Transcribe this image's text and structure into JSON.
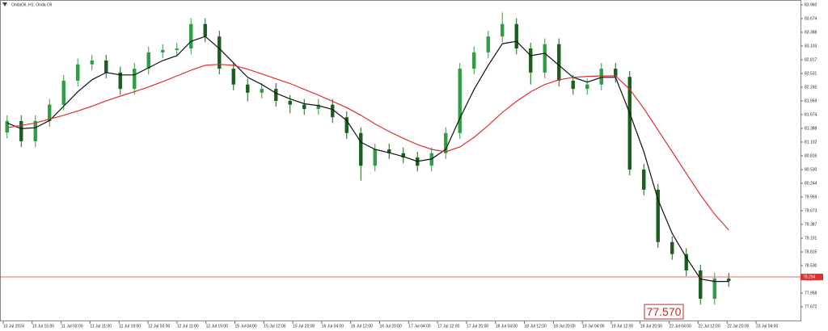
{
  "chart_data": {
    "type": "candlestick",
    "title": "OndaOil, H1: Onda Oil",
    "up_color": "#2e9e44",
    "down_color": "#1b5e20",
    "series": {
      "open": [
        81.3,
        81.54,
        81.12,
        81.54,
        81.88,
        82.38,
        82.72,
        82.8,
        82.55,
        82.21,
        82.63,
        82.97,
        83.02,
        83.05,
        83.56,
        83.3,
        82.63,
        82.3,
        82.13,
        82.21,
        81.96,
        81.88,
        81.79,
        81.88,
        81.62,
        81.29,
        80.61,
        80.95,
        80.87,
        80.78,
        80.61,
        80.87,
        81.29,
        82.63,
        82.97,
        83.3,
        83.56,
        83.05,
        82.55,
        83.14,
        82.38,
        82.21,
        82.3,
        82.63,
        82.46,
        80.53,
        80.11,
        79.02,
        78.77,
        78.43,
        77.84,
        78.26
      ],
      "high": [
        81.66,
        81.66,
        81.66,
        82.0,
        82.5,
        82.84,
        82.92,
        82.92,
        82.67,
        82.75,
        83.09,
        83.14,
        83.17,
        83.68,
        83.68,
        83.42,
        82.75,
        82.42,
        82.33,
        82.33,
        82.08,
        82.0,
        82.0,
        82.0,
        81.74,
        81.41,
        81.07,
        81.07,
        80.99,
        80.9,
        80.99,
        81.41,
        82.75,
        83.09,
        83.42,
        83.8,
        83.68,
        83.17,
        83.26,
        83.26,
        82.5,
        82.42,
        82.75,
        82.75,
        82.58,
        80.65,
        80.23,
        79.14,
        78.89,
        78.55,
        78.38,
        78.38
      ],
      "low": [
        81.18,
        81.0,
        81.0,
        81.42,
        81.76,
        82.26,
        82.6,
        82.43,
        82.09,
        82.09,
        82.51,
        82.85,
        82.9,
        82.93,
        83.18,
        82.51,
        82.18,
        81.95,
        82.01,
        81.84,
        81.7,
        81.67,
        81.67,
        81.5,
        81.17,
        80.3,
        80.49,
        80.75,
        80.66,
        80.49,
        80.49,
        80.75,
        81.17,
        82.51,
        82.85,
        83.18,
        82.93,
        82.3,
        82.43,
        82.26,
        82.09,
        82.09,
        82.18,
        82.34,
        80.41,
        79.99,
        78.9,
        78.65,
        78.31,
        77.72,
        77.72,
        78.09
      ],
      "close": [
        81.54,
        81.12,
        81.54,
        81.88,
        82.38,
        82.72,
        82.8,
        82.55,
        82.21,
        82.63,
        82.97,
        83.02,
        83.05,
        83.56,
        83.3,
        82.63,
        82.3,
        82.13,
        82.21,
        81.96,
        81.88,
        81.79,
        81.88,
        81.62,
        81.29,
        80.61,
        80.95,
        80.87,
        80.78,
        80.61,
        80.87,
        81.29,
        82.63,
        82.97,
        83.3,
        83.56,
        83.05,
        82.55,
        83.14,
        82.38,
        82.21,
        82.3,
        82.63,
        82.46,
        80.53,
        80.11,
        79.02,
        78.77,
        78.43,
        77.84,
        78.26,
        78.21
      ]
    },
    "overlays": [
      {
        "color": "#111111",
        "values": [
          81.5,
          81.38,
          81.4,
          81.55,
          81.85,
          82.15,
          82.4,
          82.55,
          82.5,
          82.5,
          82.65,
          82.8,
          82.9,
          83.2,
          83.3,
          83.05,
          82.75,
          82.45,
          82.3,
          82.12,
          82.0,
          81.9,
          81.86,
          81.78,
          81.55,
          81.1,
          80.95,
          80.88,
          80.8,
          80.7,
          80.75,
          80.95,
          81.6,
          82.2,
          82.7,
          83.15,
          83.2,
          82.9,
          82.95,
          82.7,
          82.45,
          82.35,
          82.45,
          82.45,
          81.7,
          80.9,
          79.9,
          79.2,
          78.7,
          78.25,
          78.2,
          78.2
        ]
      },
      {
        "color": "#e03030",
        "values": [
          81.4,
          81.45,
          81.5,
          81.58,
          81.66,
          81.75,
          81.85,
          81.96,
          82.06,
          82.15,
          82.25,
          82.36,
          82.48,
          82.6,
          82.7,
          82.72,
          82.7,
          82.62,
          82.52,
          82.42,
          82.32,
          82.2,
          82.08,
          81.95,
          81.82,
          81.66,
          81.48,
          81.32,
          81.18,
          81.05,
          80.95,
          80.9,
          81.0,
          81.2,
          81.45,
          81.72,
          81.95,
          82.15,
          82.3,
          82.4,
          82.45,
          82.47,
          82.48,
          82.48,
          82.2,
          81.8,
          81.35,
          80.9,
          80.45,
          80.0,
          79.6,
          79.27
        ]
      }
    ],
    "ylim": [
      77.37,
      84.06
    ],
    "yticks": [
      {
        "value": 83.96,
        "label": "83.960"
      },
      {
        "value": 83.674,
        "label": "83.674"
      },
      {
        "value": 83.388,
        "label": "83.388"
      },
      {
        "value": 83.103,
        "label": "83.103"
      },
      {
        "value": 82.817,
        "label": "82.817"
      },
      {
        "value": 82.531,
        "label": "82.531"
      },
      {
        "value": 82.245,
        "label": "82.245"
      },
      {
        "value": 81.959,
        "label": "81.959"
      },
      {
        "value": 81.674,
        "label": "81.674"
      },
      {
        "value": 81.388,
        "label": "81.388"
      },
      {
        "value": 81.102,
        "label": "81.102"
      },
      {
        "value": 80.816,
        "label": "80.816"
      },
      {
        "value": 80.53,
        "label": "80.530"
      },
      {
        "value": 80.244,
        "label": "80.244"
      },
      {
        "value": 79.959,
        "label": "79.959"
      },
      {
        "value": 79.673,
        "label": "79.673"
      },
      {
        "value": 79.387,
        "label": "79.387"
      },
      {
        "value": 79.101,
        "label": "79.101"
      },
      {
        "value": 78.815,
        "label": "78.815"
      },
      {
        "value": 78.53,
        "label": "78.530"
      },
      {
        "value": 78.244,
        "label": "78.244"
      },
      {
        "value": 77.958,
        "label": "77.958"
      },
      {
        "value": 77.672,
        "label": "77.672"
      }
    ],
    "x_labels": [
      "10 Jul 2024",
      "10 Jul 15:00",
      "11 Jul 03:00",
      "11 Jul 11:00",
      "11 Jul 19:00",
      "12 Jul 03:00",
      "12 Jul 11:00",
      "12 Jul 19:00",
      "15 Jul 04:00",
      "15 Jul 12:00",
      "15 Jul 20:00",
      "16 Jul 04:00",
      "16 Jul 12:00",
      "16 Jul 20:00",
      "17 Jul 04:00",
      "17 Jul 12:00",
      "17 Jul 20:00",
      "18 Jul 04:00",
      "18 Jul 12:00",
      "18 Jul 20:00",
      "19 Jul 04:00",
      "19 Jul 12:00",
      "19 Jul 20:00",
      "22 Jul 04:00",
      "22 Jul 12:00",
      "22 Jul 20:00",
      "23 Jul 04:00"
    ],
    "current_price": {
      "value": 78.294,
      "label": "78.294",
      "color": "#e03030"
    },
    "annotation": {
      "value": 77.57,
      "label": "77.570",
      "color": "#c62828"
    }
  }
}
